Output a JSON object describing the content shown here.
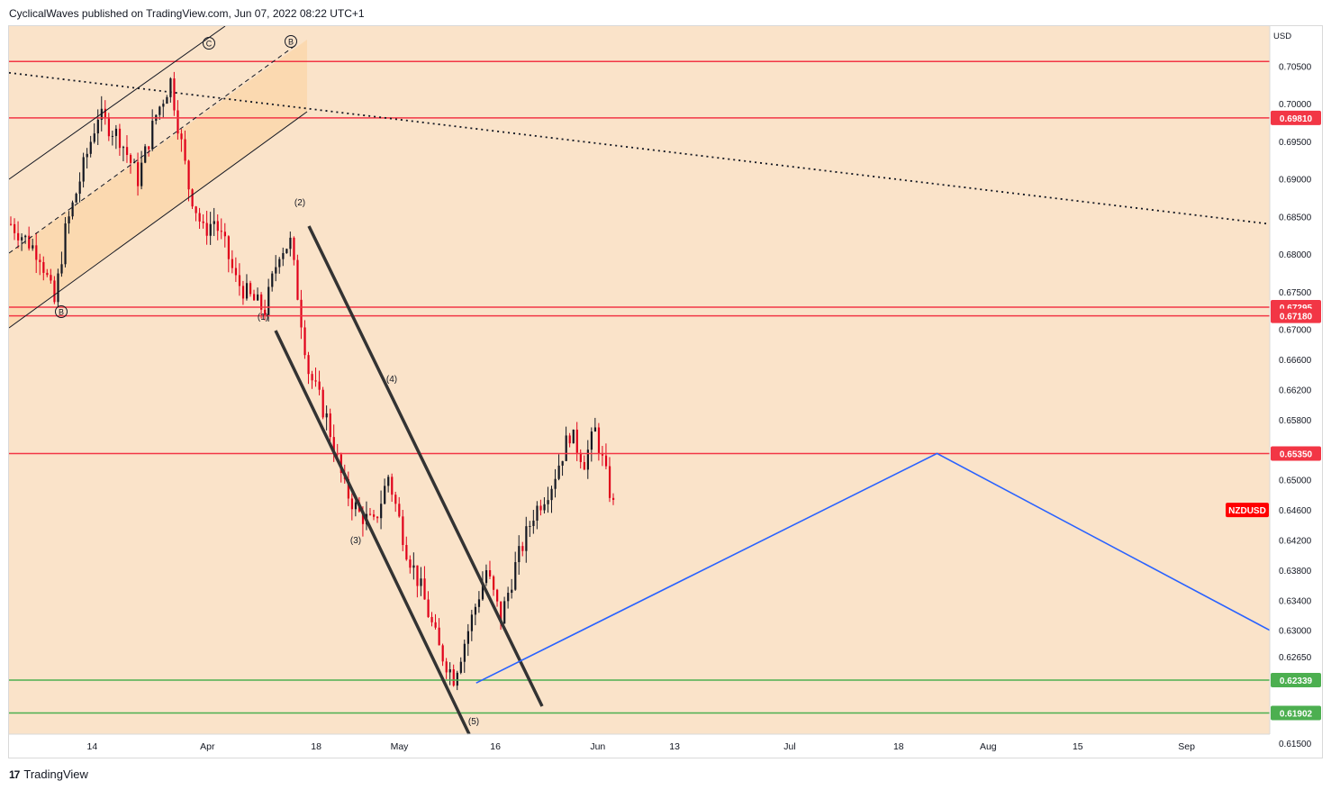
{
  "header": {
    "published": "CyclicalWaves published on TradingView.com, Jun 07, 2022 08:22 UTC+1"
  },
  "footer": {
    "logo_icon": "tradingview-logo-icon",
    "brand": "TradingView"
  },
  "colors": {
    "background": "#fae3c9",
    "channel_fill": "#fbd7ad",
    "candle_up": "#131722",
    "candle_down": "#e0001a",
    "resistance": "#f23645",
    "support": "#4caf50",
    "projection": "#2962ff",
    "price_tag": "#ff0000"
  },
  "chart_data": {
    "type": "candlestick",
    "symbol": "NZDUSD",
    "currency": "USD",
    "x_ticks": [
      "14",
      "Apr",
      "18",
      "May",
      "16",
      "Jun",
      "13",
      "Jul",
      "18",
      "Aug",
      "15",
      "Sep"
    ],
    "y_ticks": [
      "0.70500",
      "0.70000",
      "0.69500",
      "0.69000",
      "0.68500",
      "0.68000",
      "0.67500",
      "0.67000",
      "0.66600",
      "0.66200",
      "0.65800",
      "0.65000",
      "0.64600",
      "0.64200",
      "0.63800",
      "0.63400",
      "0.63000",
      "0.62650",
      "0.61500"
    ],
    "ylim": [
      0.6162,
      0.7103
    ],
    "xlim": [
      "2022-03-01",
      "2022-09-14"
    ],
    "horizontal_levels": [
      {
        "value": 0.7056,
        "color": "red"
      },
      {
        "value": 0.6981,
        "color": "red",
        "label": "0.69810"
      },
      {
        "value": 0.67295,
        "color": "red",
        "label": "0.67295"
      },
      {
        "value": 0.6718,
        "color": "red",
        "label": "0.67180"
      },
      {
        "value": 0.6535,
        "color": "red",
        "label": "0.65350"
      },
      {
        "value": 0.62339,
        "color": "green",
        "label": "0.62339"
      },
      {
        "value": 0.61902,
        "color": "green",
        "label": "0.61902"
      }
    ],
    "last_price_label": "NZDUSD",
    "wave_labels": [
      "C",
      "B",
      "B",
      "(1)",
      "(2)",
      "(3)",
      "(4)",
      "(5)"
    ],
    "projection_path": [
      {
        "date": "2022-05-13",
        "price": 0.623
      },
      {
        "date": "2022-07-24",
        "price": 0.6535
      },
      {
        "date": "2022-09-14",
        "price": 0.63
      }
    ]
  }
}
